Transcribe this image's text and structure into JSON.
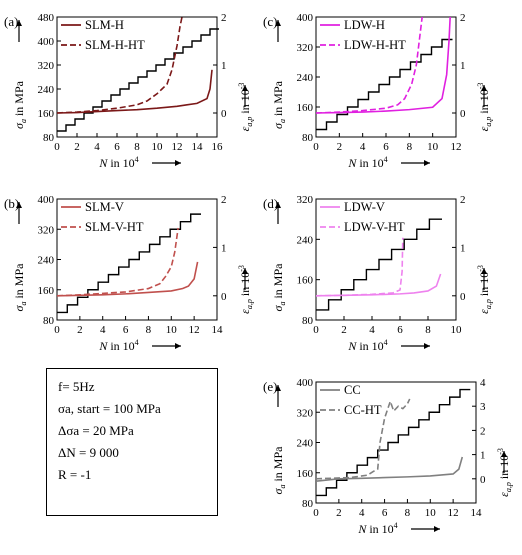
{
  "info": {
    "lines": [
      "f= 5Hz",
      "σa, start = 100 MPa",
      "Δσa = 20 MPa",
      "ΔN = 9 000",
      "R = -1"
    ]
  },
  "chart_data": [
    {
      "panel": "(a)",
      "type": "line",
      "xlabel": "N in 10^4",
      "ylabel": "σa in MPa",
      "y2label": "εa,p in 10^-3",
      "xlim": [
        0,
        16
      ],
      "xticks": [
        0,
        2,
        4,
        6,
        8,
        10,
        12,
        14,
        16
      ],
      "ylim": [
        80,
        480
      ],
      "yticks": [
        80,
        160,
        240,
        320,
        400,
        480
      ],
      "y2lim": [
        -0.5,
        2
      ],
      "y2ticks": [
        0,
        1,
        2
      ],
      "legend_position": "top-left",
      "stress_steps": [
        100,
        120,
        140,
        160,
        180,
        200,
        220,
        240,
        260,
        280,
        300,
        320,
        340,
        360,
        380,
        400,
        420,
        440
      ],
      "series": [
        {
          "name": "SLM-H",
          "axis": "right",
          "color": "#7b1818",
          "dash": "solid",
          "x": [
            0,
            2,
            4,
            6,
            8,
            10,
            12,
            13,
            14,
            15,
            15.3,
            15.5
          ],
          "y": [
            0,
            0.01,
            0.03,
            0.05,
            0.07,
            0.1,
            0.14,
            0.17,
            0.2,
            0.3,
            0.5,
            0.9
          ]
        },
        {
          "name": "SLM-H-HT",
          "axis": "right",
          "color": "#7b1818",
          "dash": "dash",
          "x": [
            0,
            2,
            4,
            6,
            8,
            9,
            10,
            10.5,
            11,
            11.5,
            12,
            12.3,
            12.5
          ],
          "y": [
            0,
            0.02,
            0.05,
            0.1,
            0.17,
            0.25,
            0.4,
            0.5,
            0.6,
            0.9,
            1.4,
            1.8,
            2.0
          ]
        }
      ]
    },
    {
      "panel": "(b)",
      "type": "line",
      "xlabel": "N in 10^4",
      "ylabel": "σa in MPa",
      "y2label": "εa,p in 10^-3",
      "xlim": [
        0,
        14
      ],
      "xticks": [
        0,
        2,
        4,
        6,
        8,
        10,
        12,
        14
      ],
      "ylim": [
        80,
        400
      ],
      "yticks": [
        80,
        160,
        240,
        320,
        400
      ],
      "y2lim": [
        -0.5,
        2
      ],
      "y2ticks": [
        0,
        1,
        2
      ],
      "legend_position": "top-left",
      "stress_steps": [
        100,
        120,
        140,
        160,
        180,
        200,
        220,
        240,
        260,
        280,
        300,
        320,
        340,
        360
      ],
      "series": [
        {
          "name": "SLM-V",
          "axis": "right",
          "color": "#c0504d",
          "dash": "solid",
          "x": [
            0,
            2,
            4,
            6,
            8,
            10,
            11,
            11.5,
            12,
            12.3
          ],
          "y": [
            0,
            0.01,
            0.02,
            0.04,
            0.07,
            0.1,
            0.15,
            0.2,
            0.35,
            0.7
          ]
        },
        {
          "name": "SLM-V-HT",
          "axis": "right",
          "color": "#c0504d",
          "dash": "dash",
          "x": [
            0,
            2,
            4,
            6,
            8,
            9,
            9.5,
            10,
            10.3,
            10.6
          ],
          "y": [
            0,
            0.02,
            0.05,
            0.08,
            0.15,
            0.25,
            0.4,
            0.6,
            0.9,
            1.4
          ]
        }
      ]
    },
    {
      "panel": "(c)",
      "type": "line",
      "xlabel": "N in 10^4",
      "ylabel": "σa in MPa",
      "y2label": "εa,p in 10^-3",
      "xlim": [
        0,
        12
      ],
      "xticks": [
        0,
        2,
        4,
        6,
        8,
        10,
        12
      ],
      "ylim": [
        80,
        400
      ],
      "yticks": [
        80,
        160,
        240,
        320,
        400
      ],
      "y2lim": [
        -0.5,
        2
      ],
      "y2ticks": [
        0,
        1,
        2
      ],
      "legend_position": "top-left",
      "stress_steps": [
        100,
        120,
        140,
        160,
        180,
        200,
        220,
        240,
        260,
        280,
        300,
        320,
        340
      ],
      "series": [
        {
          "name": "LDW-H",
          "axis": "right",
          "color": "#e020e0",
          "dash": "solid",
          "x": [
            0,
            2,
            4,
            6,
            8,
            10,
            10.8,
            11.2,
            11.4,
            11.5
          ],
          "y": [
            0,
            0.01,
            0.02,
            0.04,
            0.07,
            0.12,
            0.3,
            0.8,
            1.5,
            2.0
          ]
        },
        {
          "name": "LDW-H-HT",
          "axis": "right",
          "color": "#e020e0",
          "dash": "dash",
          "x": [
            0,
            2,
            4,
            6,
            7,
            7.6,
            8.2,
            8.6,
            8.9,
            9.1
          ],
          "y": [
            0,
            0.02,
            0.05,
            0.1,
            0.17,
            0.3,
            0.6,
            1.0,
            1.6,
            2.0
          ]
        }
      ]
    },
    {
      "panel": "(d)",
      "type": "line",
      "xlabel": "N in 10^4",
      "ylabel": "σa in MPa",
      "y2label": "εa,p in 10^-3",
      "xlim": [
        0,
        10
      ],
      "xticks": [
        0,
        2,
        4,
        6,
        8,
        10
      ],
      "ylim": [
        80,
        320
      ],
      "yticks": [
        80,
        160,
        240,
        320
      ],
      "y2lim": [
        -0.5,
        2
      ],
      "y2ticks": [
        0,
        1,
        2
      ],
      "legend_position": "top-left",
      "stress_steps": [
        100,
        120,
        140,
        160,
        180,
        200,
        220,
        240,
        260,
        280
      ],
      "series": [
        {
          "name": "LDW-V",
          "axis": "right",
          "color": "#ee82ee",
          "dash": "solid",
          "x": [
            0,
            2,
            4,
            6,
            7,
            8,
            8.6,
            8.9
          ],
          "y": [
            0,
            0.01,
            0.02,
            0.04,
            0.06,
            0.1,
            0.2,
            0.45
          ]
        },
        {
          "name": "LDW-V-HT",
          "axis": "right",
          "color": "#ee82ee",
          "dash": "dash",
          "x": [
            0,
            2,
            4,
            5.5,
            6,
            6.15,
            6.2
          ],
          "y": [
            0,
            0.01,
            0.03,
            0.06,
            0.12,
            0.5,
            1.2
          ]
        }
      ]
    },
    {
      "panel": "(e)",
      "type": "line",
      "xlabel": "N in 10^4",
      "ylabel": "σa in MPa",
      "y2label": "εa,p in 10^-3",
      "xlim": [
        0,
        14
      ],
      "xticks": [
        0,
        2,
        4,
        6,
        8,
        10,
        12,
        14
      ],
      "ylim": [
        80,
        400
      ],
      "yticks": [
        80,
        160,
        240,
        320,
        400
      ],
      "y2lim": [
        -1,
        4
      ],
      "y2ticks": [
        0,
        1,
        2,
        3,
        4
      ],
      "legend_position": "top-left",
      "stress_steps": [
        100,
        120,
        140,
        160,
        180,
        200,
        220,
        240,
        260,
        280,
        300,
        320,
        340,
        360,
        380
      ],
      "series": [
        {
          "name": "CC",
          "axis": "right",
          "color": "#808080",
          "dash": "solid",
          "x": [
            0,
            2,
            4,
            6,
            8,
            10,
            12,
            12.5,
            12.8
          ],
          "y": [
            -0.1,
            0,
            0.02,
            0.05,
            0.08,
            0.12,
            0.2,
            0.4,
            0.9
          ]
        },
        {
          "name": "CC-HT",
          "axis": "right",
          "color": "#808080",
          "dash": "dash",
          "x": [
            0,
            3,
            4.5,
            5,
            5.4,
            5.6,
            6,
            6.5,
            6.8,
            7.2,
            7.6,
            8,
            8.2
          ],
          "y": [
            0,
            0.05,
            0.15,
            0.3,
            0.4,
            1.5,
            2.5,
            3.2,
            2.8,
            3.0,
            2.9,
            3.1,
            3.3
          ]
        }
      ]
    }
  ]
}
